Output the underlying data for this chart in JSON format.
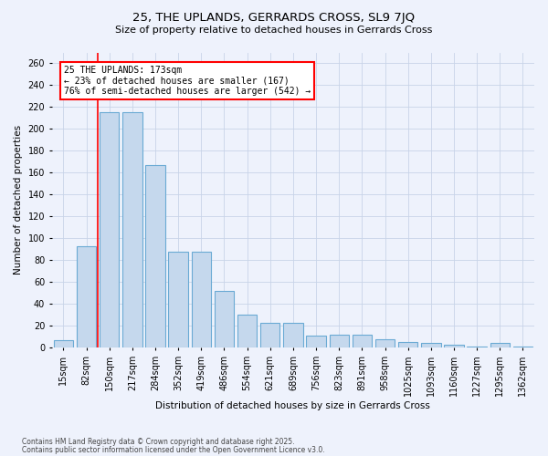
{
  "title_line1": "25, THE UPLANDS, GERRARDS CROSS, SL9 7JQ",
  "title_line2": "Size of property relative to detached houses in Gerrards Cross",
  "xlabel": "Distribution of detached houses by size in Gerrards Cross",
  "ylabel": "Number of detached properties",
  "categories": [
    "15sqm",
    "82sqm",
    "150sqm",
    "217sqm",
    "284sqm",
    "352sqm",
    "419sqm",
    "486sqm",
    "554sqm",
    "621sqm",
    "689sqm",
    "756sqm",
    "823sqm",
    "891sqm",
    "958sqm",
    "1025sqm",
    "1093sqm",
    "1160sqm",
    "1227sqm",
    "1295sqm",
    "1362sqm"
  ],
  "values": [
    7,
    93,
    215,
    215,
    167,
    88,
    88,
    52,
    30,
    23,
    23,
    11,
    12,
    12,
    8,
    5,
    4,
    3,
    1,
    4,
    1
  ],
  "bar_color": "#c5d8ed",
  "bar_edge_color": "#6aaad4",
  "annotation_text": "25 THE UPLANDS: 173sqm\n← 23% of detached houses are smaller (167)\n76% of semi-detached houses are larger (542) →",
  "annotation_box_color": "white",
  "annotation_box_edge": "red",
  "vline_color": "red",
  "vline_x": 1.5,
  "ylim": [
    0,
    270
  ],
  "yticks": [
    0,
    20,
    40,
    60,
    80,
    100,
    120,
    140,
    160,
    180,
    200,
    220,
    240,
    260
  ],
  "background_color": "#eef2fc",
  "grid_color": "#c8d4e8",
  "footnote1": "Contains HM Land Registry data © Crown copyright and database right 2025.",
  "footnote2": "Contains public sector information licensed under the Open Government Licence v3.0."
}
